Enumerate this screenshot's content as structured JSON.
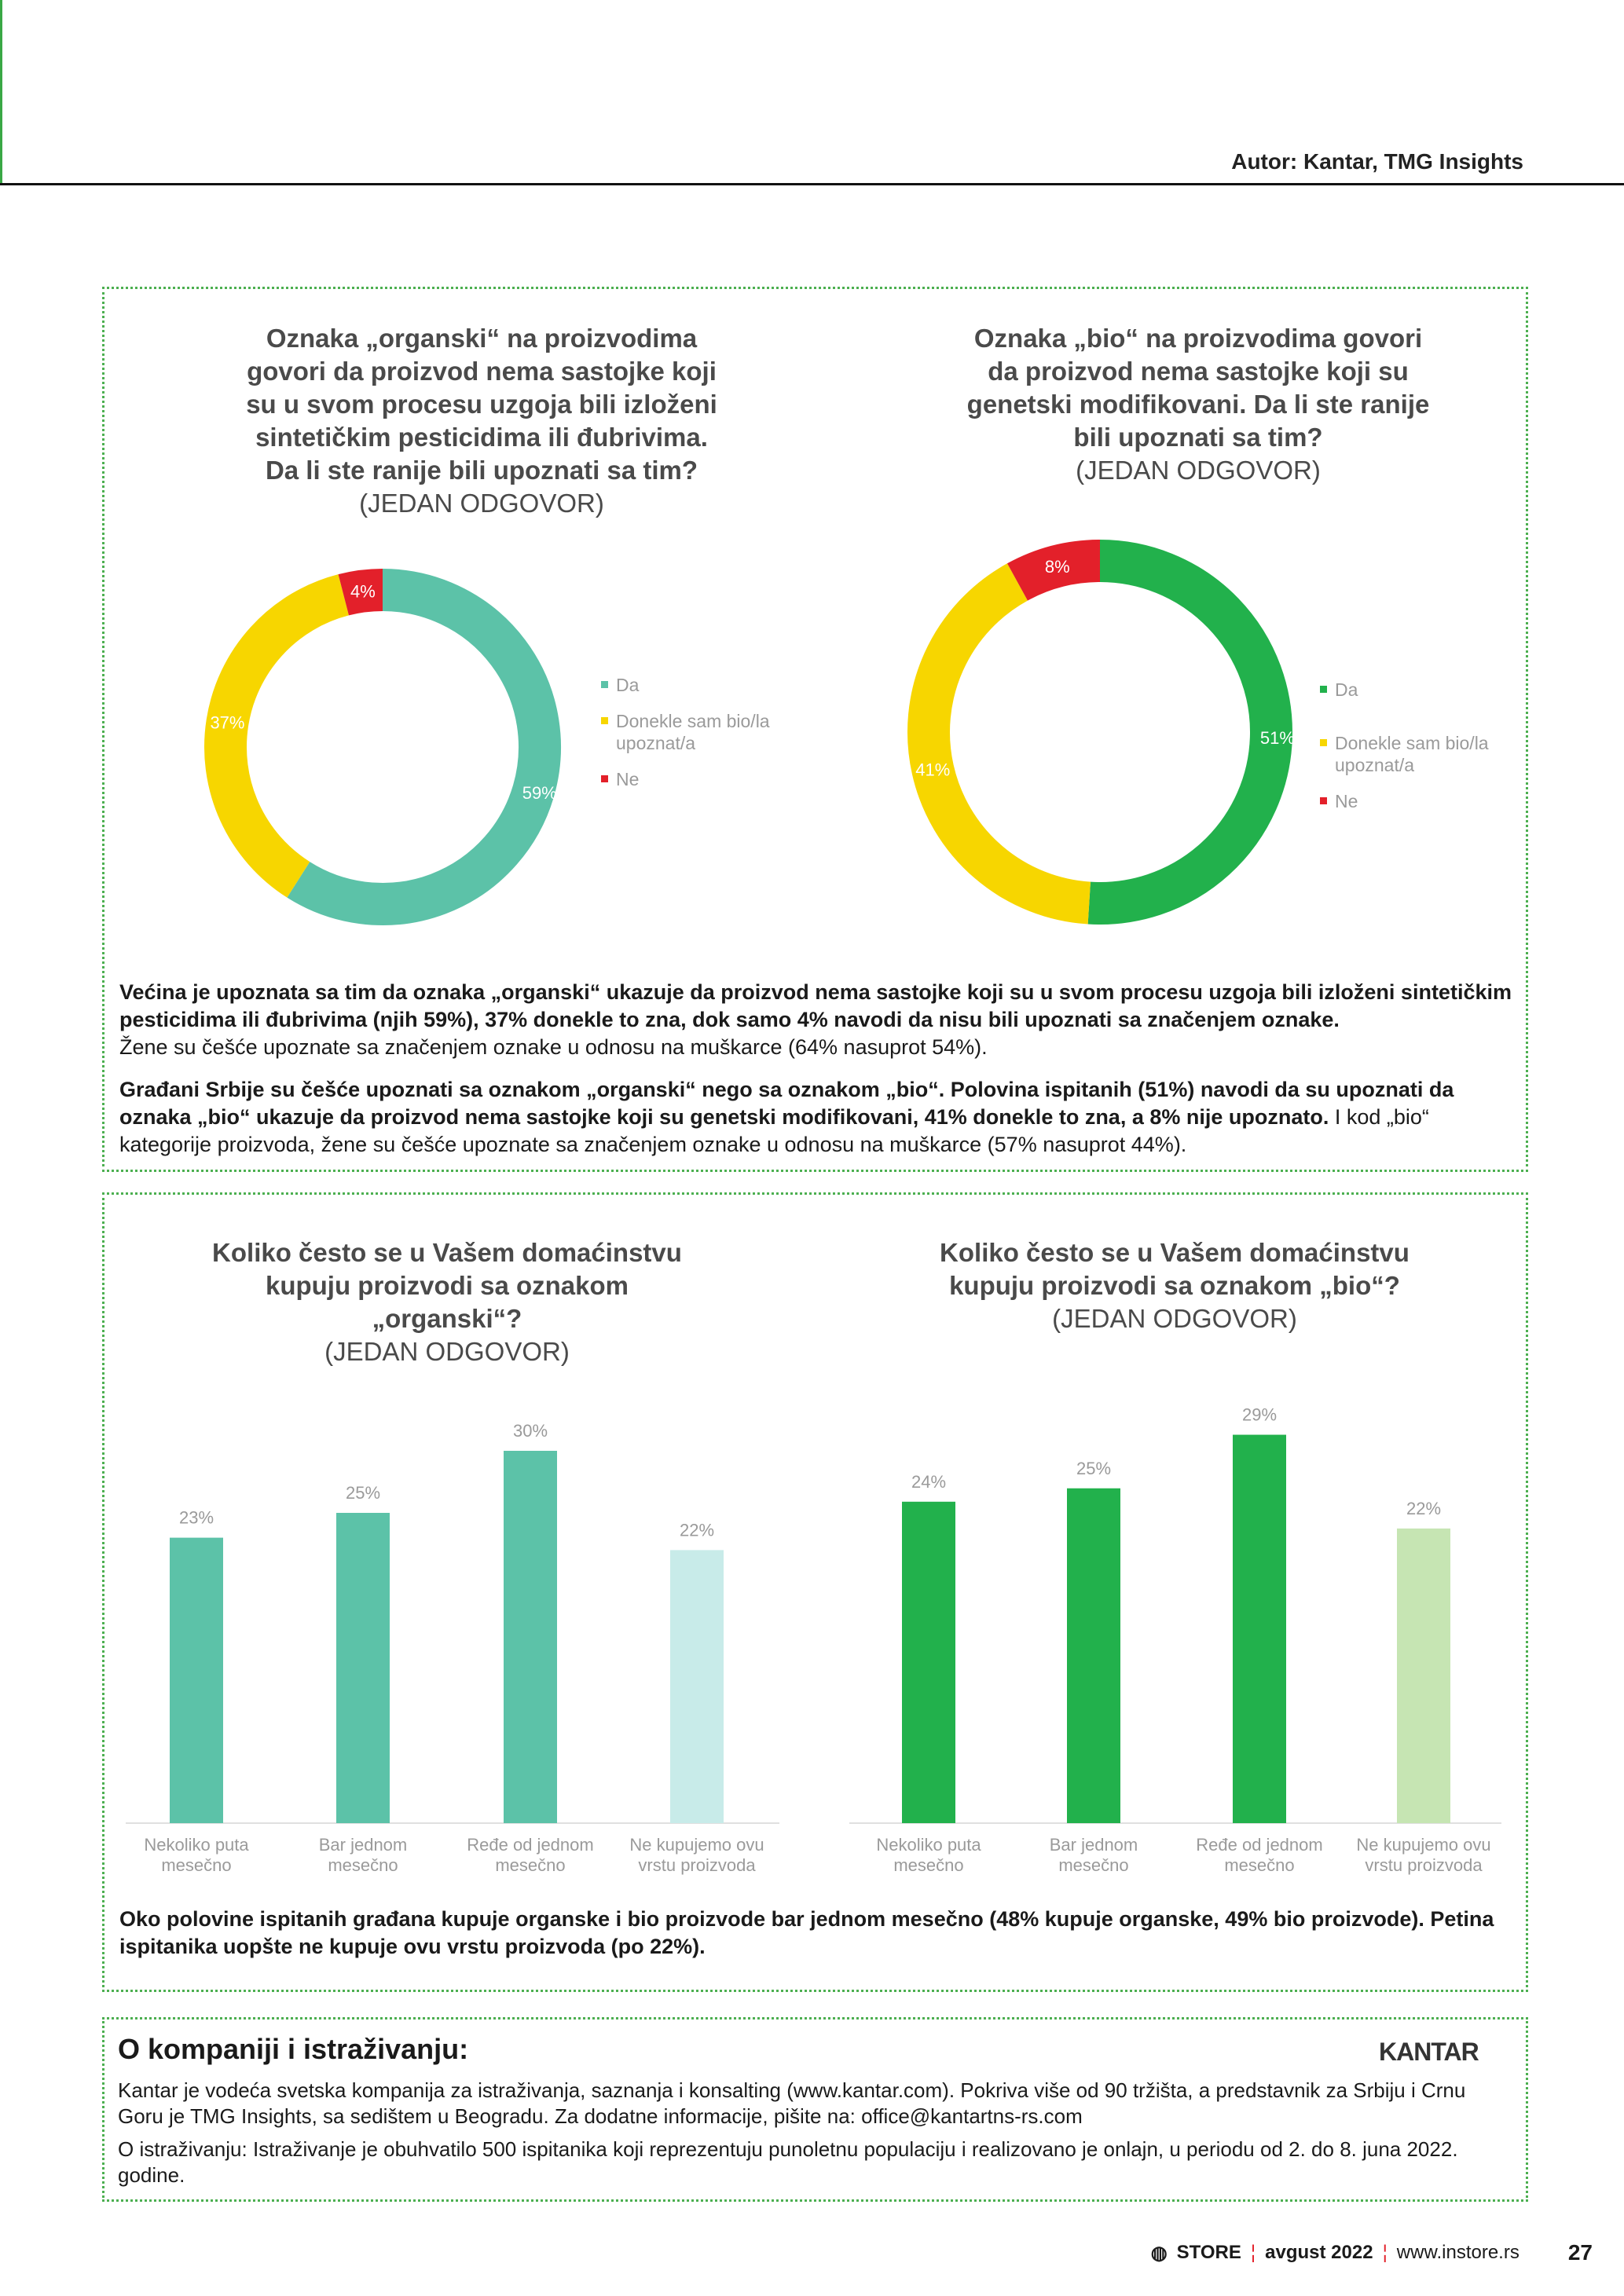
{
  "header": {
    "author": "Autor: Kantar, TMG Insights"
  },
  "chart_data": [
    {
      "type": "pie",
      "variant": "donut",
      "title": "Oznaka „organski“ na proizvodima govori da proizvod nema sastojke koji su u svom procesu uzgoja bili izloženi sintetičkim pesticidima ili đubrivima. Da li ste ranije bili upoznati sa tim?",
      "title_lines": [
        "Oznaka „organski“ na proizvodima",
        "govori da proizvod nema sastojke koji",
        "su u svom procesu uzgoja bili izloženi",
        "sintetičkim pesticidima ili đubrivima.",
        "Da li ste ranije bili upoznati sa tim?"
      ],
      "subtitle": "(JEDAN ODGOVOR)",
      "categories": [
        "Da",
        "Donekle sam bio/la upoznat/a",
        "Ne"
      ],
      "values": [
        59,
        37,
        4
      ],
      "labels": [
        "59%",
        "37%",
        "4%"
      ],
      "colors": [
        "#5cc2a8",
        "#f7d600",
        "#e3202a"
      ],
      "legend": "right"
    },
    {
      "type": "pie",
      "variant": "donut",
      "title": "Oznaka „bio“ na proizvodima govori da proizvod nema sastojke koji su genetski modifikovani. Da li ste ranije bili upoznati sa tim?",
      "title_lines": [
        "Oznaka „bio“ na proizvodima govori",
        "da proizvod nema sastojke koji su",
        "genetski modifikovani. Da li ste ranije",
        "bili upoznati sa tim?"
      ],
      "subtitle": "(JEDAN ODGOVOR)",
      "categories": [
        "Da",
        "Donekle sam bio/la upoznat/a",
        "Ne"
      ],
      "values": [
        51,
        41,
        8
      ],
      "labels": [
        "51%",
        "41%",
        "8%"
      ],
      "colors": [
        "#22b14c",
        "#f7d600",
        "#e3202a"
      ],
      "legend": "right"
    },
    {
      "type": "bar",
      "title_lines": [
        "Koliko često se u Vašem domaćinstvu",
        "kupuju proizvodi sa oznakom",
        "„organski“?"
      ],
      "subtitle": "(JEDAN ODGOVOR)",
      "categories": [
        [
          "Nekoliko puta",
          "mesečno"
        ],
        [
          "Bar jednom",
          "mesečno"
        ],
        [
          "Ređe od jednom",
          "mesečno"
        ],
        [
          "Ne kupujemo ovu",
          "vrstu proizvoda"
        ]
      ],
      "values": [
        23,
        25,
        30,
        22
      ],
      "labels": [
        "23%",
        "25%",
        "30%",
        "22%"
      ],
      "colors": [
        "#5cc2a8",
        "#5cc2a8",
        "#5cc2a8",
        "#c8ebe9"
      ],
      "grid": false
    },
    {
      "type": "bar",
      "title_lines": [
        "Koliko često se u Vašem domaćinstvu",
        "kupuju proizvodi sa oznakom „bio“?"
      ],
      "subtitle": "(JEDAN ODGOVOR)",
      "categories": [
        [
          "Nekoliko puta",
          "mesečno"
        ],
        [
          "Bar jednom",
          "mesečno"
        ],
        [
          "Ređe od jednom",
          "mesečno"
        ],
        [
          "Ne kupujemo ovu",
          "vrstu proizvoda"
        ]
      ],
      "values": [
        24,
        25,
        29,
        22
      ],
      "labels": [
        "24%",
        "25%",
        "29%",
        "22%"
      ],
      "colors": [
        "#22b14c",
        "#22b14c",
        "#22b14c",
        "#c6e5b3"
      ],
      "grid": false
    }
  ],
  "legend_lines": {
    "da": "Da",
    "donekle": [
      "Donekle sam bio/la",
      "upoznat/a"
    ],
    "ne": "Ne"
  },
  "paragraphs": {
    "p1_bold": "Većina je upoznata sa tim da oznaka „organski“ ukazuje da proizvod nema sastojke koji su u svom procesu uzgoja bili izloženi sintetičkim pesticidima ili đubrivima (njih 59%), 37% donekle to zna, dok samo 4% navodi da nisu bili upoznati sa značenjem oznake.",
    "p1_normal": "Žene su češće upoznate sa značenjem oznake u odnosu na muškarce (64% nasuprot 54%).",
    "p2_bold": "Građani Srbije su češće upoznati sa oznakom „organski“ nego sa oznakom „bio“. Polovina ispitanih (51%) navodi da su upoznati da oznaka „bio“ ukazuje da proizvod nema sastojke koji su genetski modifikovani, 41% donekle to zna, a 8% nije upoznato.",
    "p2_normal": " I kod „bio“ kategorije proizvoda, žene su češće upoznate sa značenjem oznake u odnosu na muškarce (57% nasuprot 44%).",
    "p3_bold": "Oko polovine ispitanih građana kupuje organske i bio proizvode bar jednom mesečno (48% kupuje organske, 49% bio proizvode). Petina ispitanika uopšte ne kupuje ovu vrstu proizvoda (po 22%)."
  },
  "about": {
    "heading": "O kompaniji i istraživanju:",
    "logo": "KANTAR",
    "text1": "Kantar je vodeća svetska kompanija za istraživanja, saznanja i konsalting (www.kantar.com). Pokriva više od 90 tržišta, a predstavnik za Srbiju i Crnu Goru je TMG Insights, sa sedištem u Beogradu. Za dodatne informacije, pišite na: office@kantartns-rs.com",
    "text2": "O  istraživanju: Istraživanje je obuhvatilo 500 ispitanika koji reprezentuju punoletnu populaciju i realizovano je onlajn, u periodu od 2. do 8. juna 2022. godine."
  },
  "footer": {
    "brand": "STORE",
    "issue": "avgust 2022",
    "site": "www.instore.rs",
    "page": "27"
  }
}
